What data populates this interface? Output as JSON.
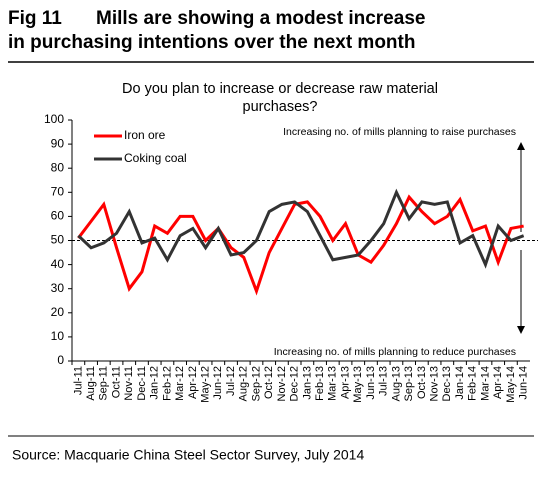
{
  "header": {
    "figure": "Fig 11",
    "title": "Mills are showing a modest increase in purchasing intentions over the next month"
  },
  "source": "Source: Macquarie China Steel Sector Survey, July 2014",
  "chart_data": {
    "type": "line",
    "title": "Do you plan to increase or decrease raw material purchases?",
    "categories": [
      "Jul-11",
      "Aug-11",
      "Sep-11",
      "Oct-11",
      "Nov-11",
      "Dec-11",
      "Jan-12",
      "Feb-12",
      "Mar-12",
      "Apr-12",
      "May-12",
      "Jun-12",
      "Jul-12",
      "Aug-12",
      "Sep-12",
      "Oct-12",
      "Nov-12",
      "Dec-12",
      "Jan-13",
      "Feb-13",
      "Mar-13",
      "Apr-13",
      "May-13",
      "Jun-13",
      "Jul-13",
      "Aug-13",
      "Sep-13",
      "Oct-13",
      "Nov-13",
      "Dec-13",
      "Jan-14",
      "Feb-14",
      "Mar-14",
      "Apr-14",
      "May-14",
      "Jun-14"
    ],
    "series": [
      {
        "name": "Iron ore",
        "color": "#ff0000",
        "values": [
          51,
          58,
          65,
          47,
          30,
          37,
          56,
          53,
          60,
          60,
          50,
          55,
          47,
          43,
          29,
          45,
          55,
          65,
          66,
          60,
          50,
          57,
          44,
          41,
          48,
          57,
          68,
          62,
          57,
          60,
          67,
          54,
          56,
          41,
          55,
          56
        ]
      },
      {
        "name": "Coking coal",
        "color": "#333333",
        "values": [
          52,
          47,
          49,
          53,
          62,
          49,
          51,
          42,
          52,
          55,
          47,
          55,
          44,
          45,
          50,
          62,
          65,
          66,
          62,
          52,
          42,
          43,
          44,
          50,
          57,
          70,
          59,
          66,
          65,
          66,
          49,
          52,
          40,
          56,
          50,
          52
        ]
      }
    ],
    "ylim": [
      0,
      100
    ],
    "yticks": [
      0,
      10,
      20,
      30,
      40,
      50,
      60,
      70,
      80,
      90,
      100
    ],
    "reference_line": 50,
    "annotations": [
      "Increasing no. of mills planning to raise purchases",
      "Increasing no. of mills planning to reduce purchases"
    ],
    "legend": "upper left",
    "grid": false
  }
}
